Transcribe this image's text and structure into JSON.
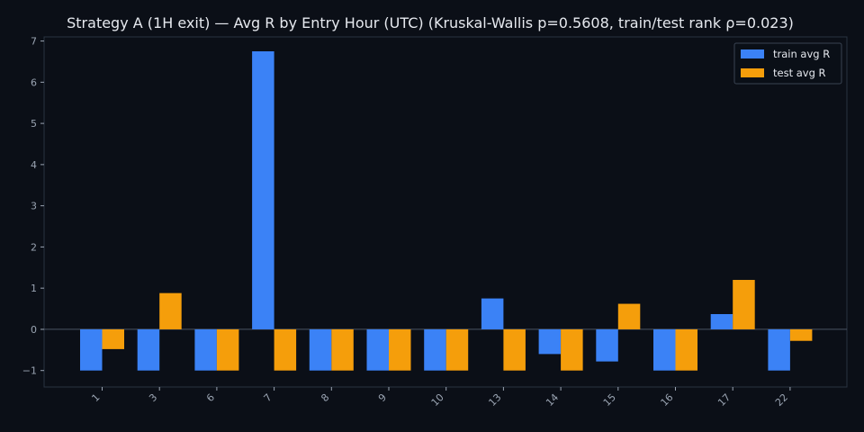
{
  "chart_data": {
    "type": "bar",
    "title": "Strategy A (1H exit) — Avg R by Entry Hour (UTC) (Kruskal-Wallis p=0.5608, train/test rank ρ=0.023)",
    "xlabel": "",
    "ylabel": "",
    "categories": [
      "1",
      "3",
      "6",
      "7",
      "8",
      "9",
      "10",
      "13",
      "14",
      "15",
      "16",
      "17",
      "22"
    ],
    "series": [
      {
        "name": "train avg R",
        "color": "#3b82f6",
        "values": [
          -1.0,
          -1.0,
          -1.0,
          6.75,
          -1.0,
          -1.0,
          -1.0,
          0.75,
          -0.6,
          -0.78,
          -1.0,
          0.37,
          -1.0
        ]
      },
      {
        "name": "test avg R",
        "color": "#f59e0b",
        "values": [
          -0.48,
          0.88,
          -1.0,
          -1.0,
          -1.0,
          -1.0,
          -1.0,
          -1.0,
          -1.0,
          0.62,
          -1.0,
          1.2,
          -0.28
        ]
      }
    ],
    "ylim": [
      -1.4,
      7.1
    ],
    "yticks": [
      -1,
      0,
      1,
      2,
      3,
      4,
      5,
      6,
      7
    ],
    "ytick_labels": [
      "−1",
      "0",
      "1",
      "2",
      "3",
      "4",
      "5",
      "6",
      "7"
    ],
    "zero_line": true,
    "grid": false,
    "legend_position": "top-right",
    "colors": {
      "background": "#0b0f17",
      "axes_face": "#0b0f17",
      "spine": "#2a3342",
      "tick_text": "#9aa4b2",
      "title_text": "#e6e9ef",
      "legend_bg": "#0b0f17",
      "legend_border": "#3a4352",
      "legend_text": "#e6e9ef",
      "zero_line": "#4b5563"
    }
  }
}
